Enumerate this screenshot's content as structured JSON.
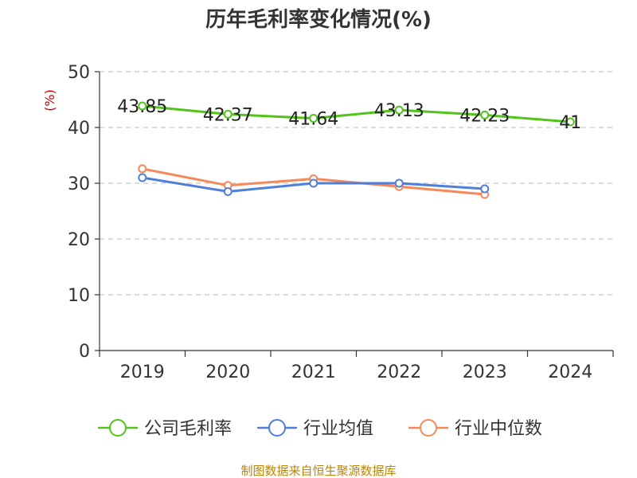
{
  "chart_data": {
    "type": "line",
    "title": "历年毛利率变化情况(%)",
    "ylabel": "(%)",
    "xlabel": "",
    "categories": [
      "2019",
      "2020",
      "2021",
      "2022",
      "2023",
      "2024"
    ],
    "ylim": [
      0,
      50
    ],
    "yticks": [
      0,
      10,
      20,
      30,
      40,
      50
    ],
    "grid": true,
    "legend_position": "bottom",
    "series": [
      {
        "name": "公司毛利率",
        "color": "#52c41a",
        "values": [
          43.85,
          42.37,
          41.64,
          43.13,
          42.23,
          41
        ],
        "labels": [
          "43.85",
          "42.37",
          "41.64",
          "43.13",
          "42.23",
          "41"
        ]
      },
      {
        "name": "行业均值",
        "color": "#4e7fd9",
        "values": [
          31.0,
          28.5,
          30.0,
          30.0,
          29.0,
          null
        ]
      },
      {
        "name": "行业中位数",
        "color": "#f5895a",
        "values": [
          32.6,
          29.6,
          30.8,
          29.4,
          28.0,
          null
        ]
      }
    ]
  },
  "source": "制图数据来自恒生聚源数据库"
}
